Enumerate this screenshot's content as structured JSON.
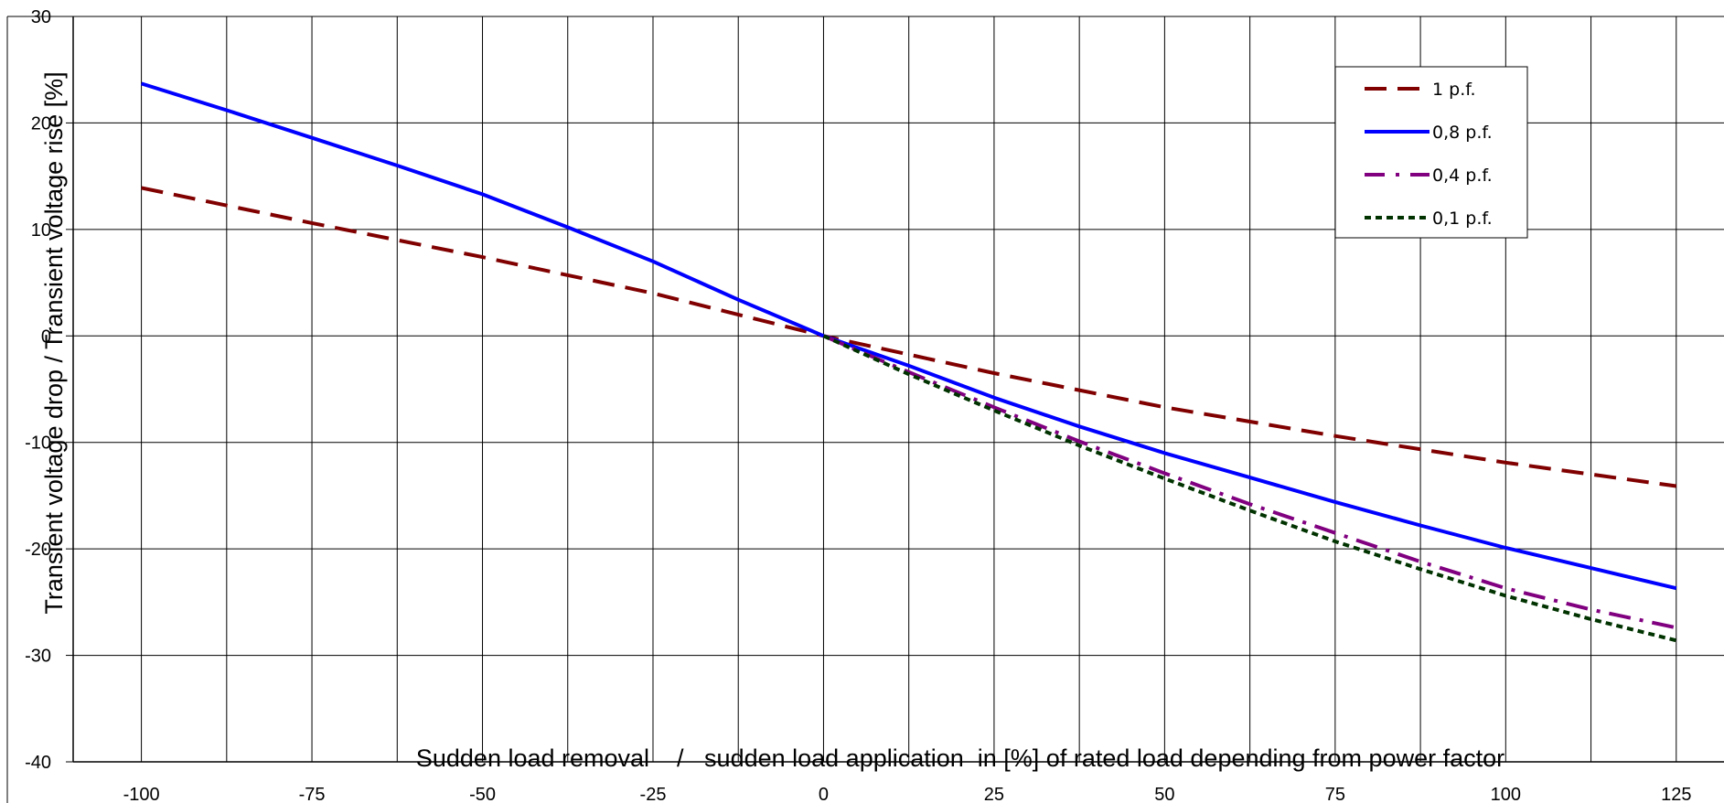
{
  "chart_data": {
    "type": "line",
    "title": "",
    "xlabel": "Sudden load removal    /   sudden load application  in [%] of rated load depending from power factor",
    "ylabel": "Transient voltage drop / Transient voltage rise [%]",
    "xlim": [
      -110,
      132
    ],
    "ylim": [
      -40,
      30
    ],
    "x_ticks": [
      -100,
      -75,
      -50,
      -25,
      0,
      25,
      50,
      75,
      100,
      125
    ],
    "x_tick_labels": [
      "-100",
      "-75",
      "-50",
      "-25",
      "0",
      "25",
      "50",
      "75",
      "100",
      "125"
    ],
    "y_ticks": [
      -40,
      -30,
      -20,
      -10,
      0,
      10,
      20,
      30
    ],
    "y_tick_labels": [
      "-40",
      "-30",
      "-20",
      "-10",
      "0",
      "10",
      "20",
      "30"
    ],
    "x_minor_step": 12.5,
    "grid": true,
    "legend_position": "top-right",
    "series": [
      {
        "name": "1 p.f.",
        "color": "#800000",
        "dash": "dashed",
        "points": [
          [
            -100,
            13.9
          ],
          [
            -75,
            10.6
          ],
          [
            -50,
            7.4
          ],
          [
            -25,
            4.0
          ],
          [
            0,
            0
          ],
          [
            25,
            -3.5
          ],
          [
            50,
            -6.7
          ],
          [
            75,
            -9.4
          ],
          [
            100,
            -11.9
          ],
          [
            125,
            -14.1
          ]
        ]
      },
      {
        "name": "0,8 p.f.",
        "color": "#0000ff",
        "dash": "solid",
        "points": [
          [
            -100,
            23.7
          ],
          [
            -87.5,
            21.2
          ],
          [
            -75,
            18.6
          ],
          [
            -62.5,
            16.0
          ],
          [
            -50,
            13.3
          ],
          [
            -37.5,
            10.2
          ],
          [
            -25,
            7.0
          ],
          [
            -12.5,
            3.4
          ],
          [
            0,
            0
          ],
          [
            12.5,
            -2.8
          ],
          [
            25,
            -5.8
          ],
          [
            37.5,
            -8.5
          ],
          [
            50,
            -11.0
          ],
          [
            62.5,
            -13.3
          ],
          [
            75,
            -15.6
          ],
          [
            87.5,
            -17.8
          ],
          [
            100,
            -19.9
          ],
          [
            112.5,
            -21.8
          ],
          [
            125,
            -23.7
          ]
        ]
      },
      {
        "name": "0,4 p.f.",
        "color": "#800080",
        "dash": "dashdot",
        "points": [
          [
            0,
            0
          ],
          [
            12.5,
            -3.4
          ],
          [
            25,
            -6.7
          ],
          [
            37.5,
            -9.9
          ],
          [
            50,
            -12.9
          ],
          [
            62.5,
            -15.8
          ],
          [
            75,
            -18.5
          ],
          [
            87.5,
            -21.2
          ],
          [
            100,
            -23.7
          ],
          [
            112.5,
            -25.7
          ],
          [
            125,
            -27.4
          ]
        ]
      },
      {
        "name": "0,1 p.f.",
        "color": "#003300",
        "dash": "dotted",
        "points": [
          [
            0,
            0
          ],
          [
            12.5,
            -3.6
          ],
          [
            25,
            -7.0
          ],
          [
            37.5,
            -10.3
          ],
          [
            50,
            -13.4
          ],
          [
            62.5,
            -16.4
          ],
          [
            75,
            -19.3
          ],
          [
            87.5,
            -21.9
          ],
          [
            100,
            -24.4
          ],
          [
            112.5,
            -26.6
          ],
          [
            125,
            -28.6
          ]
        ]
      }
    ]
  }
}
